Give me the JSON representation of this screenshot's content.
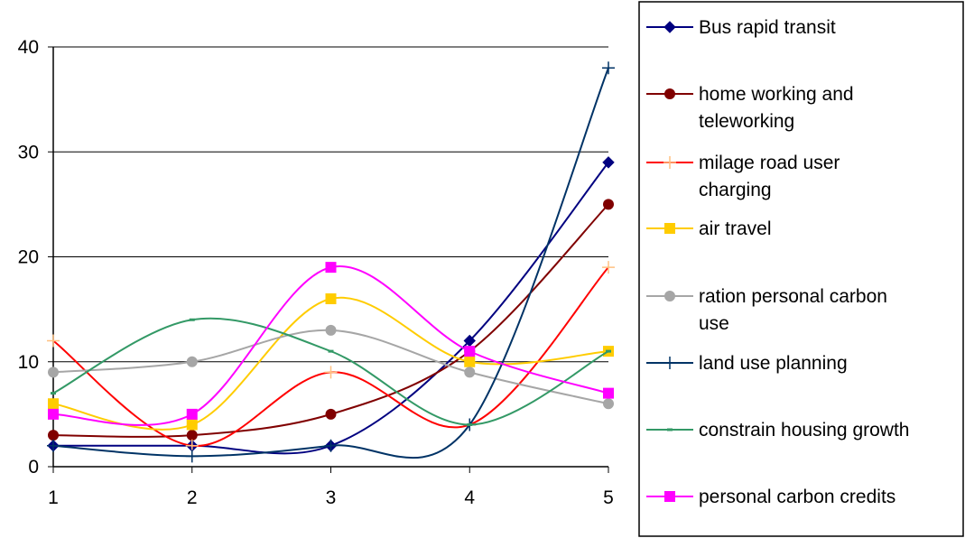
{
  "chart_data": {
    "type": "line",
    "smooth": true,
    "title": "",
    "xlabel": "",
    "ylabel": "",
    "x": [
      1,
      2,
      3,
      4,
      5
    ],
    "xlim": [
      1,
      5
    ],
    "ylim": [
      0,
      40
    ],
    "yticks": [
      0,
      10,
      20,
      30,
      40
    ],
    "grid": "horizontal",
    "legend_position": "right",
    "series": [
      {
        "name": "Bus rapid transit",
        "values": [
          2,
          2,
          2,
          12,
          29
        ],
        "color": "#000080",
        "marker": "diamond"
      },
      {
        "name": "home working and teleworking",
        "values": [
          3,
          3,
          5,
          11,
          25
        ],
        "color": "#800000",
        "marker": "circle"
      },
      {
        "name": "milage road user charging",
        "values": [
          12,
          2,
          9,
          4,
          19
        ],
        "color": "#ff0000",
        "marker": "plus",
        "marker_color": "#ffc080"
      },
      {
        "name": "air travel",
        "values": [
          6,
          4,
          16,
          10,
          11
        ],
        "color": "#ffcc00",
        "marker": "square"
      },
      {
        "name": "ration personal carbon use",
        "values": [
          9,
          10,
          13,
          9,
          6
        ],
        "color": "#a6a6a6",
        "marker": "circle"
      },
      {
        "name": "land use planning",
        "values": [
          2,
          1,
          2,
          4,
          38
        ],
        "color": "#003366",
        "marker": "plus"
      },
      {
        "name": "constrain housing growth",
        "values": [
          7,
          14,
          11,
          4,
          11
        ],
        "color": "#339966",
        "marker": "dash"
      },
      {
        "name": "personal carbon credits",
        "values": [
          5,
          5,
          19,
          11,
          7
        ],
        "color": "#ff00ff",
        "marker": "square"
      }
    ],
    "legend_lines": [
      [
        "Bus rapid transit"
      ],
      [
        "home working and",
        "teleworking"
      ],
      [
        "milage road user",
        "charging"
      ],
      [
        "air travel"
      ],
      [
        "ration personal carbon",
        "use"
      ],
      [
        "land use planning"
      ],
      [
        "constrain housing growth"
      ],
      [
        "personal carbon credits"
      ]
    ]
  }
}
